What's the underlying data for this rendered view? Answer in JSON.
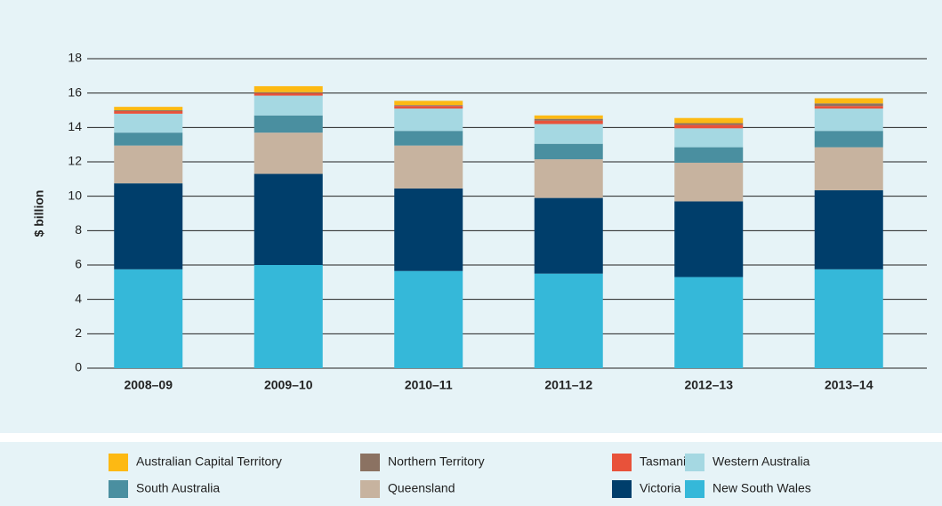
{
  "chart_data": {
    "type": "stacked-bar",
    "y_label": "$ billion",
    "categories": [
      "2008–09",
      "2009–10",
      "2010–11",
      "2011–12",
      "2012–13",
      "2013–14"
    ],
    "series": [
      {
        "name": "Australian Capital Territory",
        "color": "#fdb913",
        "values": [
          0.2,
          0.35,
          0.25,
          0.2,
          0.3,
          0.3
        ]
      },
      {
        "name": "Northern Territory",
        "color": "#8b7262",
        "values": [
          0.05,
          0.05,
          0.05,
          0.1,
          0.1,
          0.15
        ]
      },
      {
        "name": "Tasmania",
        "color": "#e8523a",
        "values": [
          0.15,
          0.15,
          0.15,
          0.2,
          0.2,
          0.15
        ]
      },
      {
        "name": "Western Australia",
        "color": "#a5d8e2",
        "values": [
          1.1,
          1.15,
          1.3,
          1.15,
          1.1,
          1.3
        ]
      },
      {
        "name": "South Australia",
        "color": "#4a8fa0",
        "values": [
          0.75,
          1.0,
          0.85,
          0.9,
          0.9,
          0.95
        ]
      },
      {
        "name": "Queensland",
        "color": "#c7b39f",
        "values": [
          2.2,
          2.4,
          2.5,
          2.25,
          2.25,
          2.5
        ]
      },
      {
        "name": "Victoria",
        "color": "#003e6b",
        "values": [
          5.0,
          5.3,
          4.8,
          4.4,
          4.4,
          4.6
        ]
      },
      {
        "name": "New South Wales",
        "color": "#35b8d9",
        "values": [
          5.75,
          6.0,
          5.65,
          5.5,
          5.3,
          5.75
        ]
      }
    ],
    "ylim": [
      0,
      18
    ],
    "yticks": [
      0,
      2,
      4,
      6,
      8,
      10,
      12,
      14,
      16,
      18
    ],
    "grid": true
  }
}
